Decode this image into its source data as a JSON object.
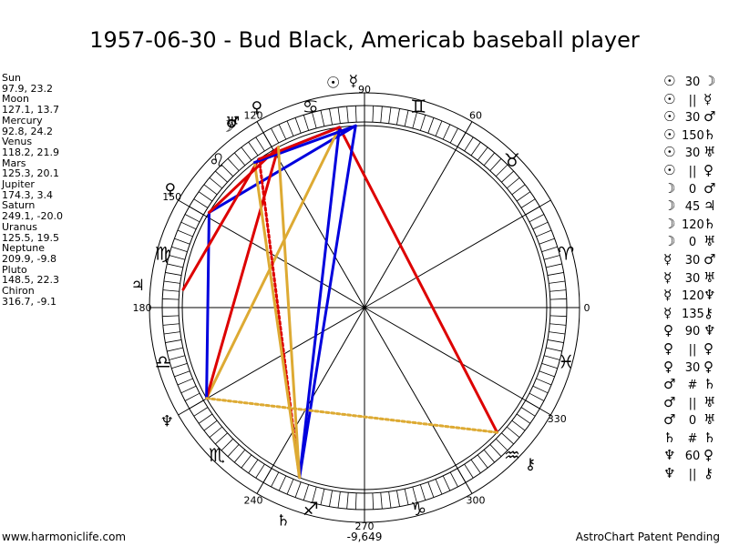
{
  "title": "1957-06-30 - Bud Black, Americab baseball player",
  "planets": [
    {
      "name": "Sun",
      "coords": "97.9, 23.2"
    },
    {
      "name": "Moon",
      "coords": "127.1, 13.7"
    },
    {
      "name": "Mercury",
      "coords": "92.8, 24.2"
    },
    {
      "name": "Venus",
      "coords": "118.2, 21.9"
    },
    {
      "name": "Mars",
      "coords": "125.3, 20.1"
    },
    {
      "name": "Jupiter",
      "coords": "174.3, 3.4"
    },
    {
      "name": "Saturn",
      "coords": "249.1, -20.0"
    },
    {
      "name": "Uranus",
      "coords": "125.5, 19.5"
    },
    {
      "name": "Neptune",
      "coords": "209.9, -9.8"
    },
    {
      "name": "Pluto",
      "coords": "148.5, 22.3"
    },
    {
      "name": "Chiron",
      "coords": "316.7, -9.1"
    }
  ],
  "aspects": [
    {
      "p1": "☉",
      "value": "30",
      "p2": "☽"
    },
    {
      "p1": "☉",
      "value": "||",
      "p2": "☿"
    },
    {
      "p1": "☉",
      "value": "30",
      "p2": "♂"
    },
    {
      "p1": "☉",
      "value": "150",
      "p2": "♄"
    },
    {
      "p1": "☉",
      "value": "30",
      "p2": "♅"
    },
    {
      "p1": "☉",
      "value": "||",
      "p2": "♀"
    },
    {
      "p1": "☽",
      "value": "0",
      "p2": "♂"
    },
    {
      "p1": "☽",
      "value": "45",
      "p2": "♃"
    },
    {
      "p1": "☽",
      "value": "120",
      "p2": "♄"
    },
    {
      "p1": "☽",
      "value": "0",
      "p2": "♅"
    },
    {
      "p1": "☿",
      "value": "30",
      "p2": "♂"
    },
    {
      "p1": "☿",
      "value": "30",
      "p2": "♅"
    },
    {
      "p1": "☿",
      "value": "120",
      "p2": "♆"
    },
    {
      "p1": "☿",
      "value": "135",
      "p2": "⚷"
    },
    {
      "p1": "♀",
      "value": "90",
      "p2": "♆"
    },
    {
      "p1": "♀",
      "value": "||",
      "p2": "♀"
    },
    {
      "p1": "♀",
      "value": "30",
      "p2": "♀"
    },
    {
      "p1": "♂",
      "value": "#",
      "p2": "♄"
    },
    {
      "p1": "♂",
      "value": "||",
      "p2": "♅"
    },
    {
      "p1": "♂",
      "value": "0",
      "p2": "♅"
    },
    {
      "p1": "♄",
      "value": "#",
      "p2": "♄"
    },
    {
      "p1": "♆",
      "value": "60",
      "p2": "♀"
    },
    {
      "p1": "♆",
      "value": "||",
      "p2": "⚷"
    }
  ],
  "wheel": {
    "degree_labels": [
      {
        "deg": 0,
        "text": "0"
      },
      {
        "deg": 60,
        "text": "60"
      },
      {
        "deg": 90,
        "text": "90"
      },
      {
        "deg": 120,
        "text": "120"
      },
      {
        "deg": 150,
        "text": "150"
      },
      {
        "deg": 180,
        "text": "180"
      },
      {
        "deg": 240,
        "text": "240"
      },
      {
        "deg": 270,
        "text": "270"
      },
      {
        "deg": 300,
        "text": "300"
      },
      {
        "deg": 330,
        "text": "330"
      }
    ],
    "signs": [
      {
        "deg": 15,
        "glyph": "♈"
      },
      {
        "deg": 45,
        "glyph": "♉"
      },
      {
        "deg": 75,
        "glyph": "♊"
      },
      {
        "deg": 105,
        "glyph": "♋"
      },
      {
        "deg": 135,
        "glyph": "♌"
      },
      {
        "deg": 165,
        "glyph": "♍"
      },
      {
        "deg": 195,
        "glyph": "♎"
      },
      {
        "deg": 225,
        "glyph": "♏"
      },
      {
        "deg": 255,
        "glyph": "♐"
      },
      {
        "deg": 285,
        "glyph": "♑"
      },
      {
        "deg": 315,
        "glyph": "♒"
      },
      {
        "deg": 345,
        "glyph": "♓"
      }
    ],
    "planet_glyphs": [
      {
        "name": "sun",
        "glyph": "☉",
        "deg": 97.9
      },
      {
        "name": "mercury",
        "glyph": "☿",
        "deg": 92.8
      },
      {
        "name": "venus",
        "glyph": "♀",
        "deg": 118.2
      },
      {
        "name": "moon",
        "glyph": "☽",
        "deg": 127.1
      },
      {
        "name": "mars",
        "glyph": "♂",
        "deg": 125.3
      },
      {
        "name": "uranus",
        "glyph": "♅",
        "deg": 125.5
      },
      {
        "name": "pluto",
        "glyph": "♀",
        "deg": 148.5
      },
      {
        "name": "jupiter",
        "glyph": "♃",
        "deg": 174.3
      },
      {
        "name": "neptune",
        "glyph": "♆",
        "deg": 209.9
      },
      {
        "name": "saturn",
        "glyph": "♄",
        "deg": 249.1
      },
      {
        "name": "chiron",
        "glyph": "⚷",
        "deg": 316.7
      }
    ],
    "aspect_lines": [
      {
        "from": 97.9,
        "to": 316.7,
        "color": "#dd0000",
        "style": "solid"
      },
      {
        "from": 92.8,
        "to": 148.5,
        "color": "#0000dd",
        "style": "solid"
      },
      {
        "from": 97.9,
        "to": 209.9,
        "color": "#ddaa33",
        "style": "solid"
      },
      {
        "from": 92.8,
        "to": 249.1,
        "color": "#0000dd",
        "style": "solid"
      },
      {
        "from": 118.2,
        "to": 209.9,
        "color": "#dd0000",
        "style": "solid"
      },
      {
        "from": 148.5,
        "to": 209.9,
        "color": "#0000dd",
        "style": "solid"
      },
      {
        "from": 125.3,
        "to": 249.1,
        "color": "#dd0000",
        "style": "dotted"
      },
      {
        "from": 125.5,
        "to": 174.3,
        "color": "#dd0000",
        "style": "solid"
      },
      {
        "from": 127.1,
        "to": 249.1,
        "color": "#ddaa33",
        "style": "solid"
      },
      {
        "from": 118.2,
        "to": 148.5,
        "color": "#dd0000",
        "style": "solid"
      },
      {
        "from": 125.5,
        "to": 97.9,
        "color": "#0000dd",
        "style": "solid"
      },
      {
        "from": 127.1,
        "to": 92.8,
        "color": "#0000dd",
        "style": "solid"
      },
      {
        "from": 209.9,
        "to": 316.7,
        "color": "#ddaa33",
        "style": "dotted"
      },
      {
        "from": 97.9,
        "to": 249.1,
        "color": "#0000dd",
        "style": "solid"
      },
      {
        "from": 125.3,
        "to": 97.9,
        "color": "#dd0000",
        "style": "solid"
      },
      {
        "from": 118.2,
        "to": 249.1,
        "color": "#ddaa33",
        "style": "solid"
      }
    ]
  },
  "center_value": "-9,649",
  "footer_left": "www.harmoniclife.com",
  "footer_right": "AstroChart Patent Pending"
}
